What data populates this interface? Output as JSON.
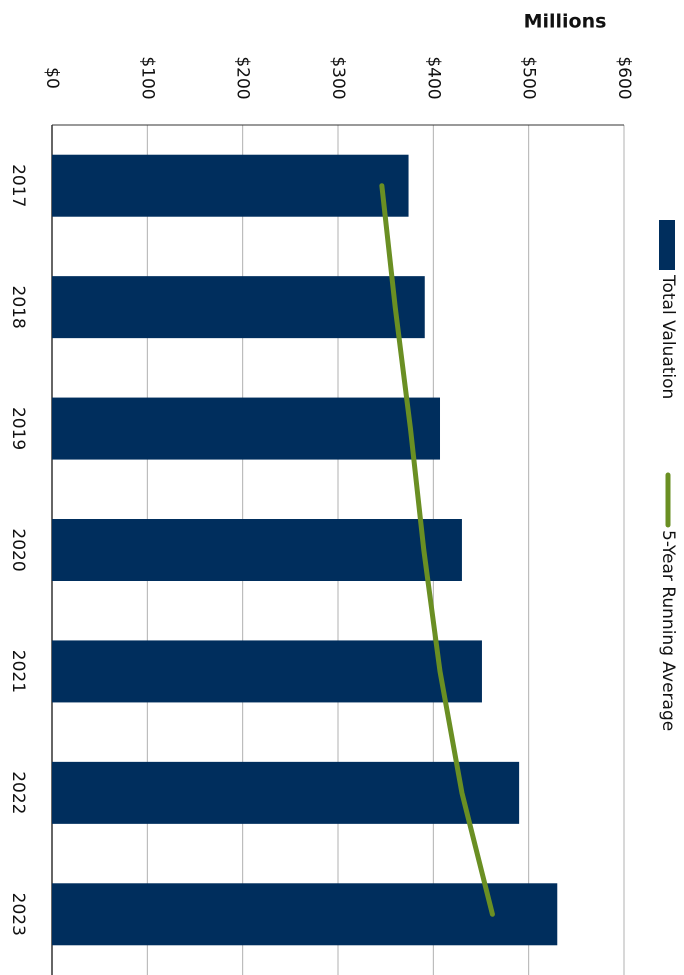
{
  "chart_data": {
    "type": "bar",
    "title": "Millions",
    "categories": [
      "2017",
      "2018",
      "2019",
      "2020",
      "2021",
      "2022",
      "2023"
    ],
    "series": [
      {
        "name": "Total Valuation",
        "type": "bar",
        "color": "#002e5d",
        "values": [
          374,
          391,
          407,
          430,
          451,
          490,
          530
        ]
      },
      {
        "name": "5-Year Running Average",
        "type": "line",
        "color": "#6a8f23",
        "values": [
          346,
          360,
          376,
          390,
          407,
          430,
          462
        ]
      }
    ],
    "xlim": [
      0,
      600
    ],
    "xticks": [
      {
        "value": 0,
        "label": "$0"
      },
      {
        "value": 100,
        "label": "$100"
      },
      {
        "value": 200,
        "label": "$200"
      },
      {
        "value": 300,
        "label": "$300"
      },
      {
        "value": 400,
        "label": "$400"
      },
      {
        "value": 500,
        "label": "$500"
      },
      {
        "value": 600,
        "label": "$600"
      }
    ],
    "grid": true,
    "legend": "right"
  }
}
